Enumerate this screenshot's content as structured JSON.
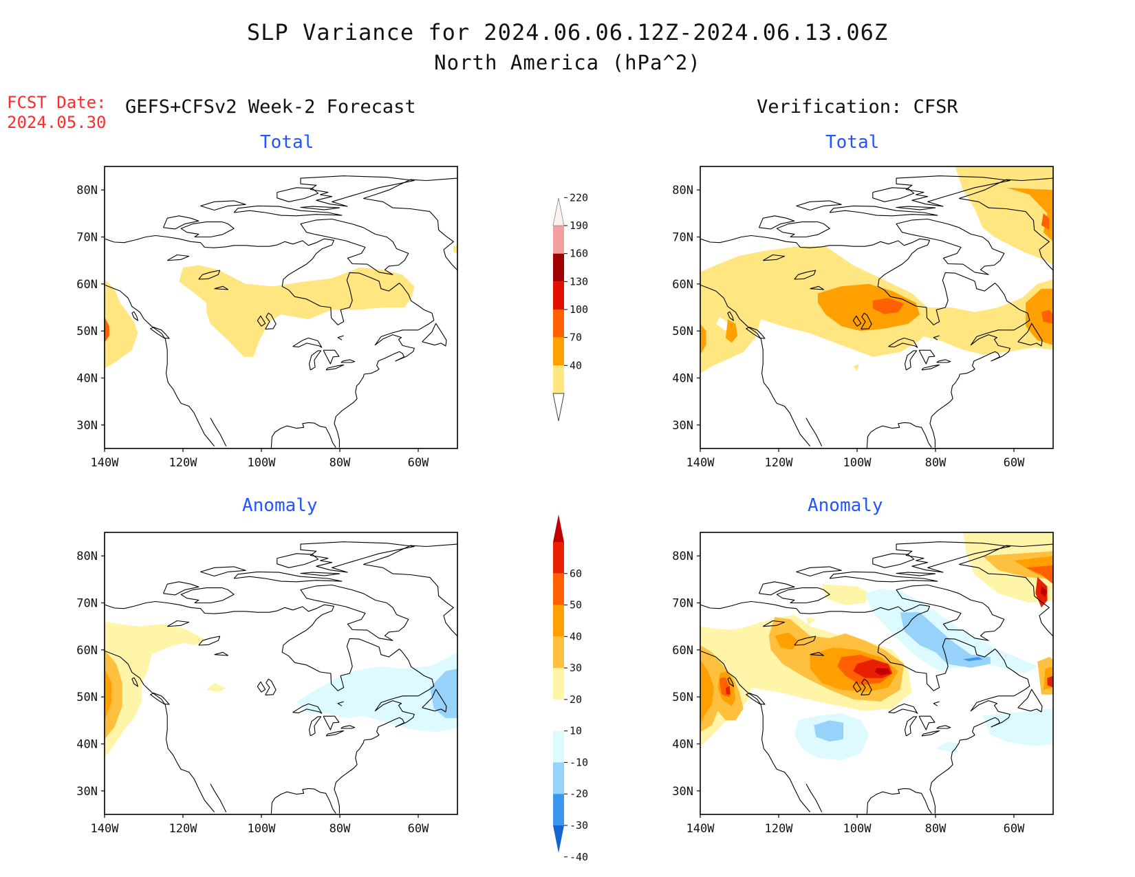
{
  "title": {
    "line1": "SLP Variance for 2024.06.06.12Z-2024.06.13.06Z",
    "line2": "North America (hPa^2)"
  },
  "fcst": {
    "label": "FCST Date:",
    "date": "2024.05.30"
  },
  "columns": {
    "left": "GEFS+CFSv2 Week-2 Forecast",
    "right": "Verification: CFSR"
  },
  "panels": [
    {
      "id": "forecast-total",
      "title": "Total"
    },
    {
      "id": "verification-total",
      "title": "Total"
    },
    {
      "id": "forecast-anomaly",
      "title": "Anomaly"
    },
    {
      "id": "verification-anomaly",
      "title": "Anomaly"
    }
  ],
  "map": {
    "lat_labels": [
      "80N",
      "70N",
      "60N",
      "50N",
      "40N",
      "30N"
    ],
    "lat_values": [
      80,
      70,
      60,
      50,
      40,
      30
    ],
    "lon_labels": [
      "140W",
      "120W",
      "100W",
      "80W",
      "60W"
    ],
    "lon_values": [
      -140,
      -120,
      -100,
      -80,
      -60
    ],
    "lat_range": [
      25,
      85
    ],
    "lon_range": [
      -140,
      -50
    ]
  },
  "colorbars": {
    "total": {
      "labels": [
        "40",
        "70",
        "100",
        "130",
        "160",
        "190",
        "220"
      ],
      "colors": [
        "#ffe680",
        "#ffa000",
        "#ff6000",
        "#e01000",
        "#a00000",
        "#f2a0a0",
        "#ffe8e8"
      ]
    },
    "anomaly": {
      "labels": [
        "60",
        "50",
        "40",
        "30",
        "20",
        "10",
        "-10",
        "-20",
        "-30",
        "-40"
      ],
      "colors": [
        "#c00000",
        "#e82000",
        "#ff6000",
        "#ffa000",
        "#ffc040",
        "#fff5a8",
        "#ffffff",
        "#dcfaff",
        "#96d2fa",
        "#3c96f0",
        "#1464d2"
      ]
    }
  },
  "shading_colors": {
    "c40": "#ffe680",
    "c70": "#ffa000",
    "c100": "#ff6000",
    "a10": "#fff5a8",
    "a20": "#ffc040",
    "a30": "#ffa000",
    "a40": "#ff6000",
    "a50": "#e82000",
    "a60": "#c00000",
    "n10": "#dcfaff",
    "n20": "#96d2fa",
    "n30": "#3c96f0"
  }
}
